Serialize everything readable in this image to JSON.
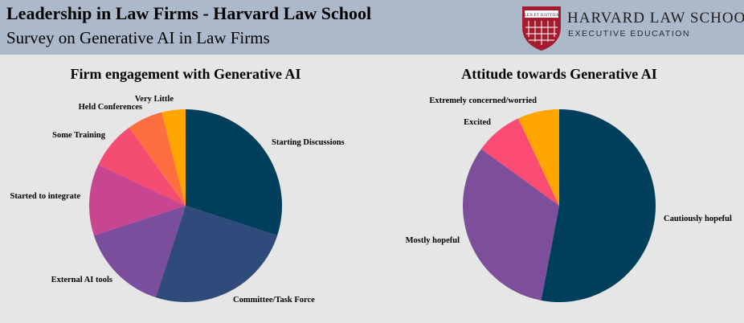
{
  "header": {
    "title": "Leadership in Law Firms - Harvard Law School",
    "subtitle": "Survey on Generative AI in Law Firms"
  },
  "logo": {
    "name": "HARVARD LAW SCHOOL",
    "unit": "EXECUTIVE EDUCATION",
    "motto": "LEX ET IUSTITIA",
    "colors": {
      "shield": "#a51c30",
      "ribbon": "#ffffff"
    }
  },
  "chart_data": [
    {
      "type": "pie",
      "title": "Firm engagement with Generative AI",
      "start": "12 o'clock, clockwise",
      "slices": [
        {
          "label": "Starting Discussions",
          "value": 30,
          "color": "#003f5c"
        },
        {
          "label": "Committee/Task Force",
          "value": 25,
          "color": "#2f4b7c"
        },
        {
          "label": "External AI tools",
          "value": 15,
          "color": "#7a4e9c"
        },
        {
          "label": "Started to integrate",
          "value": 12,
          "color": "#c7468f"
        },
        {
          "label": "Some Training",
          "value": 8,
          "color": "#f54c72"
        },
        {
          "label": "Held Conferences",
          "value": 6,
          "color": "#ff6e3e"
        },
        {
          "label": "Very Little",
          "value": 4,
          "color": "#ffa600"
        }
      ]
    },
    {
      "type": "pie",
      "title": "Attitude towards Generative AI",
      "start": "12 o'clock, clockwise",
      "slices": [
        {
          "label": "Cautiously hopeful",
          "value": 53,
          "color": "#003f5c"
        },
        {
          "label": "Mostly hopeful",
          "value": 32,
          "color": "#7d4e99"
        },
        {
          "label": "Excited",
          "value": 8,
          "color": "#fa4b72"
        },
        {
          "label": "Extremely concerned/worried",
          "value": 7,
          "color": "#ffa600"
        }
      ]
    }
  ]
}
